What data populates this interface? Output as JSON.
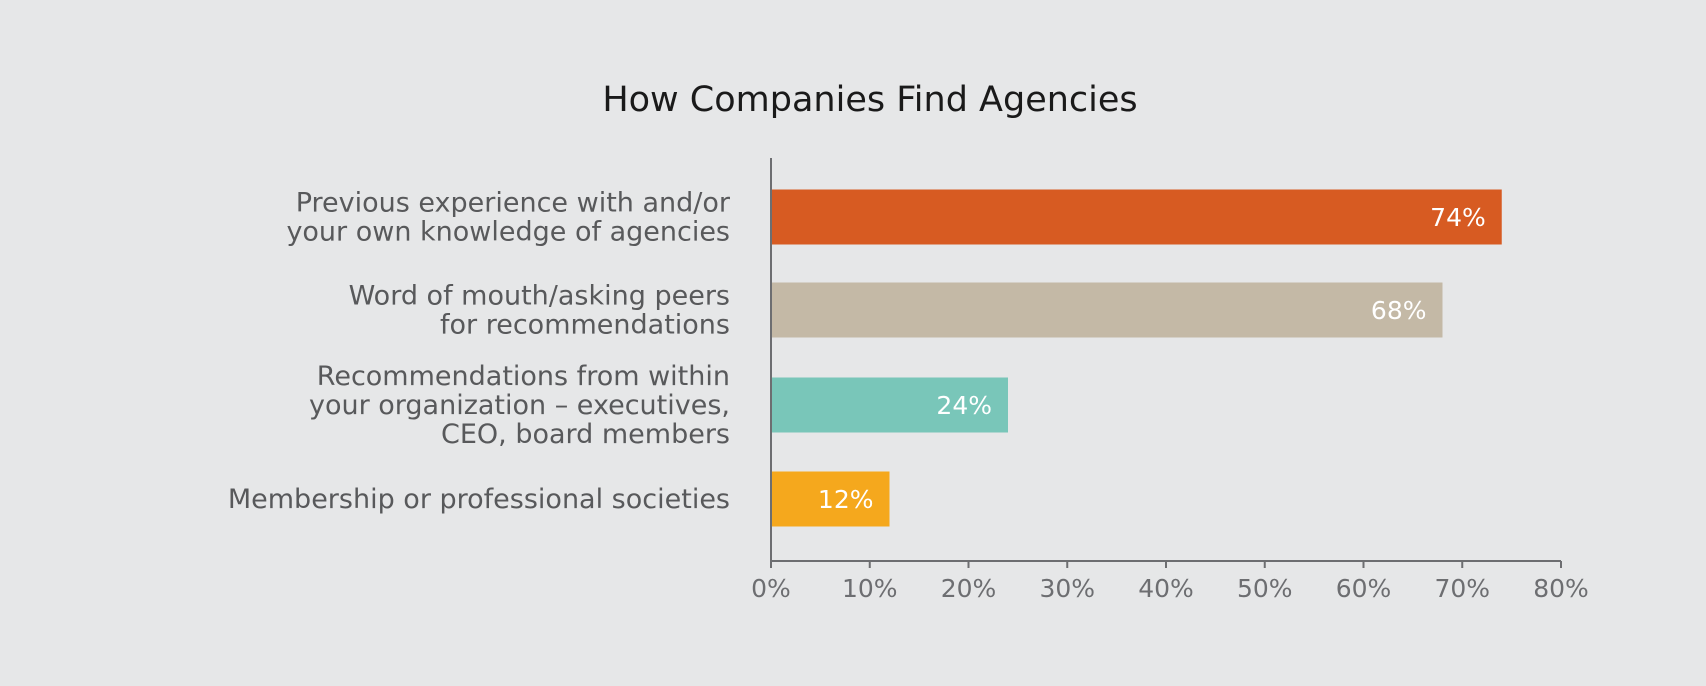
{
  "chart_data": {
    "type": "bar",
    "orientation": "horizontal",
    "title": "How Companies Find Agencies",
    "xlabel": "",
    "ylabel": "",
    "xlim": [
      0,
      80
    ],
    "grid": false,
    "legend": "none",
    "x_ticks": [
      "0%",
      "10%",
      "20%",
      "30%",
      "40%",
      "50%",
      "60%",
      "70%",
      "80%"
    ],
    "x_tick_values": [
      0,
      10,
      20,
      30,
      40,
      50,
      60,
      70,
      80
    ],
    "categories": [
      [
        "Previous experience with and/or",
        "your own knowledge of agencies"
      ],
      [
        "Word of mouth/asking peers",
        "for recommendations"
      ],
      [
        "Recommendations from within",
        "your organization – executives,",
        "CEO, board members"
      ],
      [
        "Membership or professional societies"
      ]
    ],
    "values": [
      74,
      68,
      24,
      12
    ],
    "data_labels": [
      "74%",
      "68%",
      "24%",
      "12%"
    ],
    "colors": [
      "#d75b22",
      "#c4b9a6",
      "#79c6b9",
      "#f5a81d"
    ]
  }
}
